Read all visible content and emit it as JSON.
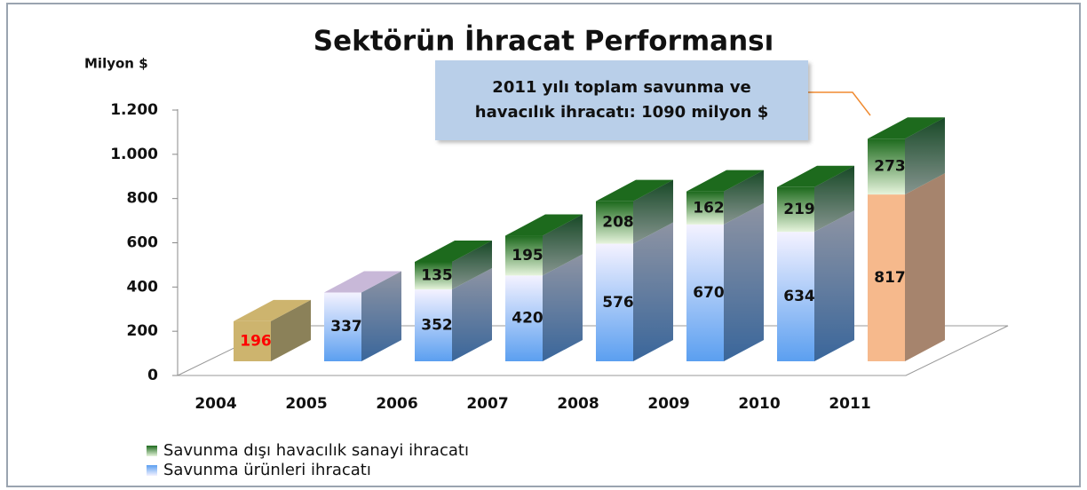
{
  "chart_data": {
    "type": "bar3d-stacked",
    "title": "Sektörün İhracat Performansı",
    "y_label": "Milyon $",
    "annotation": "2011 yılı toplam savunma ve havacılık ihracatı: 1090 milyon $",
    "categories": [
      "2004",
      "2005",
      "2006",
      "2007",
      "2008",
      "2009",
      "2010",
      "2011"
    ],
    "series": [
      {
        "name": "Savunma ürünleri ihracatı",
        "color": "#5b9ff0",
        "color2": "#f4f2ff",
        "colors": [
          "#cdb46e",
          "#5b9ff0",
          "#5b9ff0",
          "#5b9ff0",
          "#5b9ff0",
          "#5b9ff0",
          "#5b9ff0",
          "#f6b98c"
        ],
        "label_colors": [
          "#ff0000",
          "#111111",
          "#111111",
          "#111111",
          "#111111",
          "#111111",
          "#111111",
          "#111111"
        ],
        "values": [
          196,
          337,
          352,
          420,
          576,
          670,
          634,
          817
        ]
      },
      {
        "name": "Savunma dışı havacılık sanayi ihracatı",
        "color": "#1d6a1d",
        "color2": "#e6f4dc",
        "values": [
          null,
          null,
          135,
          195,
          208,
          162,
          219,
          273
        ]
      }
    ],
    "ylim": [
      0,
      1200
    ],
    "yticks": [
      0,
      200,
      400,
      600,
      800,
      {
        "value": 1000,
        "label": "1.000"
      },
      {
        "value": 1200,
        "label": "1.200"
      }
    ]
  }
}
